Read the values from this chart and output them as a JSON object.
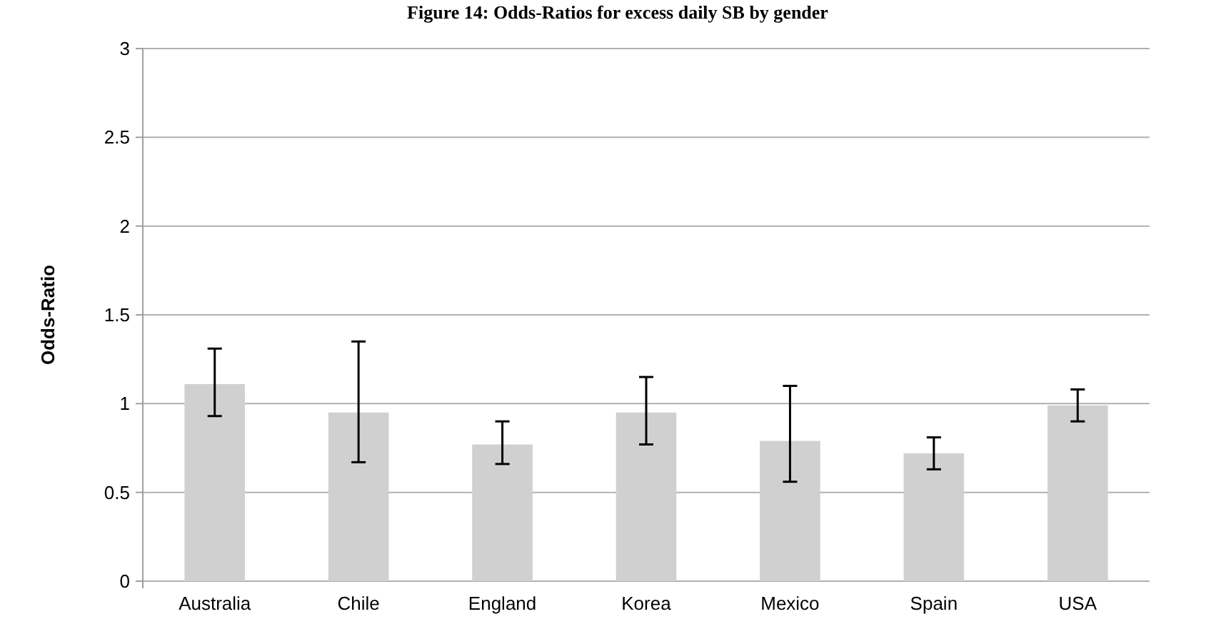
{
  "chart_data": {
    "type": "bar",
    "title": "Figure 14: Odds-Ratios for excess daily SB by gender",
    "ylabel": "Odds-Ratio",
    "categories": [
      "Australia",
      "Chile",
      "England",
      "Korea",
      "Mexico",
      "Spain",
      "USA"
    ],
    "values": [
      1.11,
      0.95,
      0.77,
      0.95,
      0.79,
      0.72,
      0.99
    ],
    "errors": [
      [
        0.93,
        1.31
      ],
      [
        0.67,
        1.35
      ],
      [
        0.66,
        0.9
      ],
      [
        0.77,
        1.15
      ],
      [
        0.56,
        1.1
      ],
      [
        0.63,
        0.81
      ],
      [
        0.9,
        1.08
      ]
    ],
    "color": "#d0d0d0",
    "ylim": [
      0,
      3
    ],
    "yticks": [
      0,
      0.5,
      1,
      1.5,
      2,
      2.5,
      3
    ],
    "grid": "y"
  }
}
